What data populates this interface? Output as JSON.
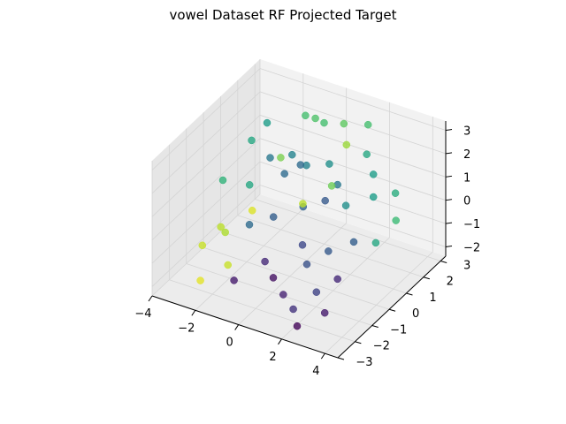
{
  "chart_data": {
    "type": "scatter",
    "title": "vowel Dataset RF Projected Target",
    "xlabel": "",
    "ylabel": "",
    "zlabel": "",
    "xlim": [
      -4,
      4.6
    ],
    "ylim": [
      -3,
      3.3
    ],
    "zlim": [
      -2.4,
      3.4
    ],
    "grid": true,
    "colormap": "viridis",
    "x_ticks": [
      "−4",
      "−2",
      "0",
      "2",
      "4"
    ],
    "y_ticks": [
      "−3",
      "−2",
      "−1",
      "0",
      "1",
      "2",
      "3"
    ],
    "z_ticks": [
      "−2",
      "−1",
      "0",
      "1",
      "2",
      "3"
    ],
    "colors": {
      "pane": "#f2f2f2",
      "pane_side": "#e6e6e6",
      "pane_floor": "#ececec",
      "grid": "#d4d4d4",
      "axis": "#000000"
    },
    "points": [
      {
        "x": -3.2,
        "y": 1.8,
        "z": 1.2,
        "c": 0.6
      },
      {
        "x": -3.5,
        "y": 0.5,
        "z": 0.3,
        "c": 0.65
      },
      {
        "x": -2.8,
        "y": 2.2,
        "z": 1.8,
        "c": 0.55
      },
      {
        "x": -2.1,
        "y": 1.5,
        "z": 1.0,
        "c": 0.4
      },
      {
        "x": -1.5,
        "y": 2.8,
        "z": 2.1,
        "c": 0.7
      },
      {
        "x": -0.8,
        "y": 2.5,
        "z": 2.4,
        "c": 0.72
      },
      {
        "x": 0.2,
        "y": 2.9,
        "z": 2.2,
        "c": 0.75
      },
      {
        "x": 0.8,
        "y": 2.3,
        "z": 1.9,
        "c": 0.85
      },
      {
        "x": 1.5,
        "y": 2.6,
        "z": 1.5,
        "c": 0.6
      },
      {
        "x": 2.2,
        "y": 2.1,
        "z": 1.2,
        "c": 0.55
      },
      {
        "x": -1.2,
        "y": 1.2,
        "z": 0.8,
        "c": 0.35
      },
      {
        "x": -0.5,
        "y": 1.6,
        "z": 1.1,
        "c": 0.45
      },
      {
        "x": 0.4,
        "y": 1.8,
        "z": 1.3,
        "c": 0.5
      },
      {
        "x": 1.1,
        "y": 1.4,
        "z": 0.9,
        "c": 0.4
      },
      {
        "x": -2.5,
        "y": 0.8,
        "z": 0.2,
        "c": 0.6
      },
      {
        "x": -1.9,
        "y": 0.2,
        "z": -0.3,
        "c": 0.95
      },
      {
        "x": -2.8,
        "y": -0.5,
        "z": -0.8,
        "c": 0.9
      },
      {
        "x": -3.1,
        "y": -1.2,
        "z": -1.2,
        "c": 0.92
      },
      {
        "x": -2.2,
        "y": -1.0,
        "z": -0.5,
        "c": 0.88
      },
      {
        "x": -1.4,
        "y": -0.6,
        "z": -0.2,
        "c": 0.35
      },
      {
        "x": -0.6,
        "y": -0.2,
        "z": 0.1,
        "c": 0.3
      },
      {
        "x": 0.3,
        "y": 0.4,
        "z": 0.4,
        "c": 0.32
      },
      {
        "x": 1.0,
        "y": 0.8,
        "z": 0.6,
        "c": 0.28
      },
      {
        "x": 1.8,
        "y": 1.0,
        "z": 0.5,
        "c": 0.5
      },
      {
        "x": 2.6,
        "y": 1.6,
        "z": 0.7,
        "c": 0.55
      },
      {
        "x": 3.3,
        "y": 2.0,
        "z": 0.8,
        "c": 0.62
      },
      {
        "x": 3.8,
        "y": 1.4,
        "z": 0.2,
        "c": 0.68
      },
      {
        "x": 3.5,
        "y": 0.6,
        "z": -0.3,
        "c": 0.6
      },
      {
        "x": 2.8,
        "y": 0.2,
        "z": -0.2,
        "c": 0.3
      },
      {
        "x": 2.1,
        "y": -0.4,
        "z": -0.4,
        "c": 0.28
      },
      {
        "x": -0.2,
        "y": -1.2,
        "z": -1.0,
        "c": 0.12
      },
      {
        "x": 0.5,
        "y": -1.6,
        "z": -1.2,
        "c": 0.05
      },
      {
        "x": 1.2,
        "y": -1.9,
        "z": -1.5,
        "c": 0.1
      },
      {
        "x": 1.9,
        "y": -2.2,
        "z": -1.7,
        "c": 0.15
      },
      {
        "x": 2.5,
        "y": -1.6,
        "z": -1.2,
        "c": 0.2
      },
      {
        "x": 3.0,
        "y": -1.0,
        "z": -0.9,
        "c": 0.12
      },
      {
        "x": 1.5,
        "y": -0.9,
        "z": -0.8,
        "c": 0.25
      },
      {
        "x": 0.9,
        "y": -0.4,
        "z": -0.5,
        "c": 0.22
      },
      {
        "x": -1.0,
        "y": -2.0,
        "z": -1.5,
        "c": 0.08
      },
      {
        "x": -1.6,
        "y": -1.6,
        "z": -1.3,
        "c": 0.92
      },
      {
        "x": -2.4,
        "y": -2.2,
        "z": -1.8,
        "c": 0.96
      },
      {
        "x": 0.0,
        "y": 2.0,
        "z": 2.8,
        "c": 0.7
      },
      {
        "x": -0.3,
        "y": 1.0,
        "z": 1.6,
        "c": 0.35
      },
      {
        "x": 0.6,
        "y": 0.0,
        "z": 0.9,
        "c": 0.9
      },
      {
        "x": -1.8,
        "y": 2.4,
        "z": 0.6,
        "c": 0.45
      },
      {
        "x": 1.4,
        "y": 2.8,
        "z": 2.6,
        "c": 0.7
      },
      {
        "x": 2.4,
        "y": -2.6,
        "z": -2.0,
        "c": 0.02
      },
      {
        "x": 3.2,
        "y": -2.0,
        "z": -1.6,
        "c": 0.08
      },
      {
        "x": -0.9,
        "y": 0.6,
        "z": 2.0,
        "c": 0.8
      },
      {
        "x": 1.7,
        "y": 0.3,
        "z": 1.8,
        "c": 0.78
      }
    ]
  }
}
